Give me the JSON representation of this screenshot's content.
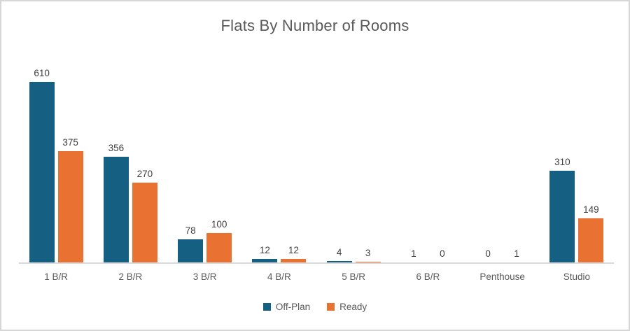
{
  "chart_data": {
    "type": "bar",
    "title": "Flats By Number of Rooms",
    "categories": [
      "1 B/R",
      "2 B/R",
      "3 B/R",
      "4 B/R",
      "5 B/R",
      "6 B/R",
      "Penthouse",
      "Studio"
    ],
    "series": [
      {
        "name": "Off-Plan",
        "color": "#156082",
        "values": [
          610,
          356,
          78,
          12,
          4,
          1,
          0,
          310
        ]
      },
      {
        "name": "Ready",
        "color": "#E97132",
        "values": [
          375,
          270,
          100,
          12,
          3,
          0,
          1,
          149
        ]
      }
    ],
    "xlabel": "",
    "ylabel": "",
    "ylim": [
      0,
      650
    ],
    "grid": false,
    "legend_position": "bottom",
    "data_labels": true
  },
  "colors": {
    "background": "#ffffff",
    "border": "#d6d6d6",
    "axis_line": "#d9d9d9",
    "title_text": "#595959",
    "axis_text": "#595959",
    "data_label_text": "#404040"
  }
}
